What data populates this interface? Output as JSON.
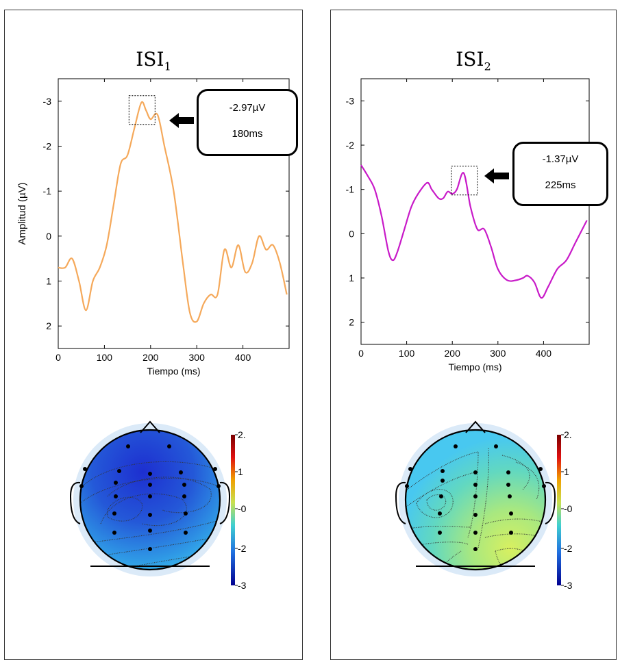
{
  "panels": [
    {
      "title_main": "ISI",
      "title_sub": "1"
    },
    {
      "title_main": "ISI",
      "title_sub": "2"
    }
  ],
  "callouts": [
    {
      "amplitude": "-2.97µV",
      "latency": "180ms"
    },
    {
      "amplitude": "-1.37µV",
      "latency": "225ms"
    }
  ],
  "colorbar": {
    "ticks": [
      "2.",
      "1",
      "-0",
      "-2",
      "-3"
    ]
  },
  "colors": {
    "isi1": "#F5A95B",
    "isi2": "#C81AC8"
  },
  "chart_data": [
    {
      "type": "line",
      "title": "ISI1",
      "xlabel": "Tiempo (ms)",
      "ylabel": "Amplitud (µV)",
      "xlim": [
        0,
        500
      ],
      "ylim": [
        2.5,
        -3.5
      ],
      "y_reversed": true,
      "xticks": [
        0,
        100,
        200,
        300,
        400
      ],
      "yticks": [
        -3,
        -2,
        -1,
        0,
        1,
        2
      ],
      "series": [
        {
          "x": [
            0,
            15,
            30,
            45,
            60,
            75,
            90,
            105,
            120,
            135,
            150,
            165,
            180,
            190,
            200,
            215,
            230,
            250,
            270,
            285,
            300,
            315,
            330,
            345,
            360,
            375,
            390,
            405,
            420,
            435,
            450,
            465,
            480,
            495
          ],
          "y": [
            0.7,
            0.7,
            0.5,
            1.0,
            1.65,
            1.0,
            0.7,
            0.2,
            -0.7,
            -1.6,
            -1.8,
            -2.4,
            -2.97,
            -2.8,
            -2.6,
            -2.7,
            -2.0,
            -1.0,
            0.6,
            1.7,
            1.9,
            1.5,
            1.3,
            1.3,
            0.3,
            0.7,
            0.2,
            0.8,
            0.6,
            0.0,
            0.3,
            0.2,
            0.6,
            1.3
          ]
        }
      ],
      "highlight_x": 180
    },
    {
      "type": "line",
      "title": "ISI2",
      "xlabel": "Tiempo (ms)",
      "ylabel": "",
      "xlim": [
        0,
        500
      ],
      "ylim": [
        2.5,
        -3.5
      ],
      "y_reversed": true,
      "xticks": [
        0,
        100,
        200,
        300,
        400
      ],
      "yticks": [
        -3,
        -2,
        -1,
        0,
        1,
        2
      ],
      "series": [
        {
          "x": [
            0,
            15,
            30,
            45,
            60,
            70,
            80,
            95,
            110,
            125,
            145,
            155,
            170,
            180,
            190,
            200,
            210,
            225,
            240,
            255,
            270,
            285,
            300,
            320,
            340,
            355,
            365,
            380,
            395,
            410,
            430,
            450,
            470,
            495
          ],
          "y": [
            -1.55,
            -1.3,
            -1.0,
            -0.4,
            0.4,
            0.6,
            0.4,
            -0.1,
            -0.6,
            -0.9,
            -1.15,
            -1.0,
            -0.8,
            -0.8,
            -0.95,
            -0.9,
            -1.0,
            -1.37,
            -0.6,
            -0.1,
            -0.1,
            0.3,
            0.8,
            1.05,
            1.05,
            1.0,
            0.95,
            1.1,
            1.45,
            1.2,
            0.8,
            0.6,
            0.2,
            -0.3
          ]
        }
      ],
      "highlight_x": 225
    }
  ]
}
